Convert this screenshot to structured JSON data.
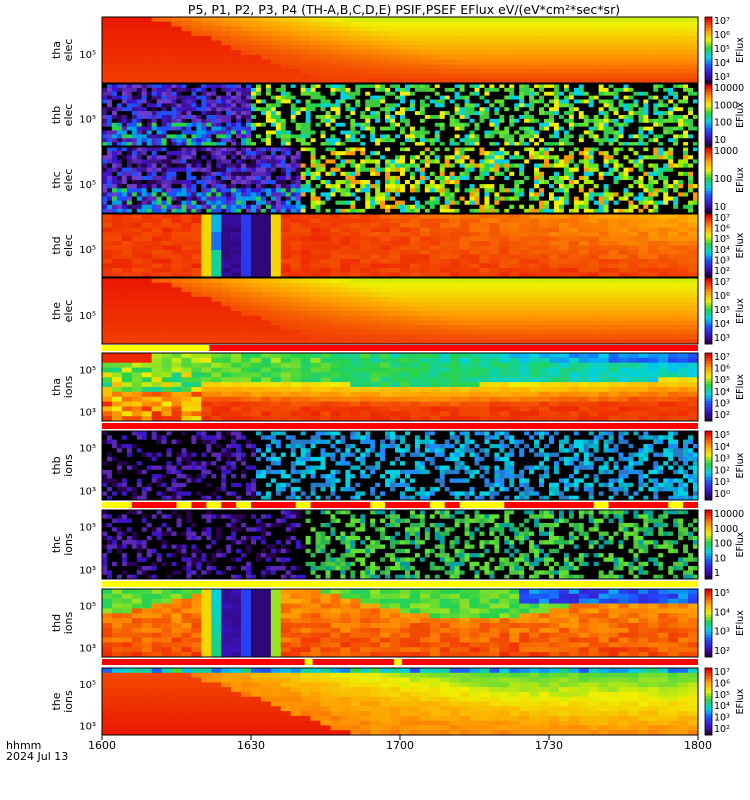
{
  "title": "P5, P1, P2, P3, P4 (TH-A,B,C,D,E) PSIF,PSEF EFlux eV/(eV*cm²*sec*sr)",
  "footer": {
    "time_label": "hhmm",
    "date_label": "2024 Jul 13"
  },
  "colorbar_label": "EFlux",
  "chart_data": {
    "type": "heatmap",
    "x_ticks": [
      "1600",
      "1630",
      "1700",
      "1730",
      "1800"
    ],
    "x_minutes": [
      0,
      30,
      60,
      90,
      120
    ],
    "panels": [
      {
        "id": "tha-elec",
        "label": [
          "tha",
          "elec"
        ],
        "y_tick": "10⁵",
        "cbar_ticks": [
          "10⁷",
          "10⁶",
          "10⁵",
          "10⁴",
          "10³"
        ],
        "pattern": "smooth_elec"
      },
      {
        "id": "thb-elec",
        "label": [
          "thb",
          "elec"
        ],
        "y_tick": "10⁵",
        "cbar_ticks": [
          "10000",
          "1000",
          "100",
          "10"
        ],
        "pattern": "noisy_b_elec",
        "switch_minute": 30
      },
      {
        "id": "thc-elec",
        "label": [
          "thc",
          "elec"
        ],
        "y_tick": "10⁵",
        "cbar_ticks": [
          "1000",
          "100",
          "10"
        ],
        "pattern": "noisy_c_elec",
        "switch_minute": 40
      },
      {
        "id": "thd-elec",
        "label": [
          "thd",
          "elec"
        ],
        "y_tick": "10⁵",
        "cbar_ticks": [
          "10⁷",
          "10⁶",
          "10⁵",
          "10⁴",
          "10³",
          "10²"
        ],
        "pattern": "thd_elec"
      },
      {
        "id": "the-elec",
        "label": [
          "the",
          "elec"
        ],
        "y_tick": "10⁵",
        "cbar_ticks": [
          "10⁷",
          "10⁶",
          "10⁵",
          "10⁴",
          "10³"
        ],
        "pattern": "smooth_elec"
      },
      {
        "id": "tha-ions",
        "label": [
          "tha",
          "ions"
        ],
        "y_tick": "10⁵",
        "y_tick_low": "10³",
        "cbar_ticks": [
          "10⁷",
          "10⁶",
          "10⁵",
          "10⁴",
          "10³",
          "10²"
        ],
        "pattern": "tha_ions"
      },
      {
        "id": "thb-ions",
        "label": [
          "thb",
          "ions"
        ],
        "y_tick": "10⁵",
        "y_tick_low": "10³",
        "cbar_ticks": [
          "10⁵",
          "10⁴",
          "10³",
          "10²",
          "10¹",
          "10⁰"
        ],
        "pattern": "noisy_b_ions",
        "switch_minute": 31
      },
      {
        "id": "thc-ions",
        "label": [
          "thc",
          "ions"
        ],
        "y_tick": "10⁵",
        "y_tick_low": "10³",
        "cbar_ticks": [
          "10000",
          "1000",
          "100",
          "10",
          "1"
        ],
        "pattern": "noisy_c_ions",
        "switch_minute": 41
      },
      {
        "id": "thd-ions",
        "label": [
          "thd",
          "ions"
        ],
        "y_tick": "10⁵",
        "y_tick_low": "10³",
        "cbar_ticks": [
          "10⁵",
          "10⁴",
          "10³",
          "10²"
        ],
        "pattern": "thd_ions"
      },
      {
        "id": "the-ions",
        "label": [
          "the",
          "ions"
        ],
        "y_tick": "10⁵",
        "y_tick_low": "10³",
        "cbar_ticks": [
          "10⁷",
          "10⁶",
          "10⁵",
          "10⁴",
          "10³",
          "10²"
        ],
        "pattern": "the_ions"
      }
    ]
  }
}
